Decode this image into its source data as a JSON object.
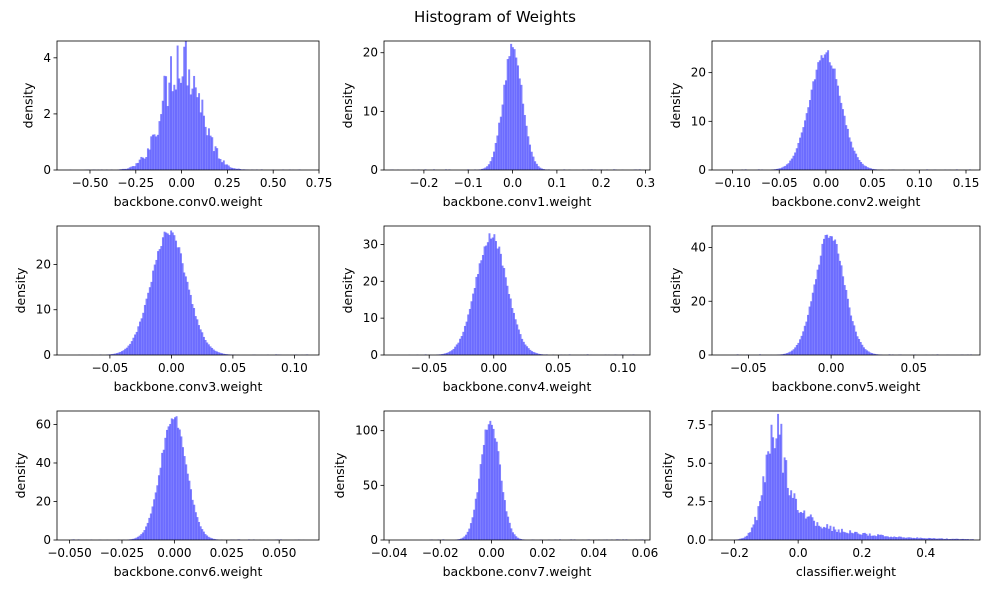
{
  "figure": {
    "title": "Histogram of Weights",
    "bar_color": "#0000ff",
    "bar_opacity": 0.5
  },
  "chart_data": [
    {
      "type": "histogram",
      "name": "conv0",
      "xlabel": "backbone.conv0.weight",
      "ylabel": "density",
      "xlim": [
        -0.68,
        0.75
      ],
      "ylim": [
        0,
        4.6
      ],
      "xticks": [
        -0.5,
        -0.25,
        0.0,
        0.25,
        0.5,
        0.75
      ],
      "xticklabels": [
        "−0.50",
        "−0.25",
        "0.00",
        "0.25",
        "0.50",
        "0.75"
      ],
      "yticks": [
        0,
        2,
        4
      ],
      "yticklabels": [
        "0",
        "2",
        "4"
      ],
      "dist": {
        "mean": 0.0,
        "sd": 0.1,
        "peak": 4.1,
        "range": [
          -0.63,
          0.72
        ],
        "skew": 0,
        "noise": 0.3
      }
    },
    {
      "type": "histogram",
      "name": "conv1",
      "xlabel": "backbone.conv1.weight",
      "ylabel": "density",
      "xlim": [
        -0.29,
        0.31
      ],
      "ylim": [
        0,
        22
      ],
      "xticks": [
        -0.2,
        -0.1,
        0.0,
        0.1,
        0.2,
        0.3
      ],
      "xticklabels": [
        "−0.2",
        "−0.1",
        "0.0",
        "0.1",
        "0.2",
        "0.3"
      ],
      "yticks": [
        0,
        10,
        20
      ],
      "yticklabels": [
        "0",
        "10",
        "20"
      ],
      "dist": {
        "mean": 0.0,
        "sd": 0.022,
        "peak": 20.5,
        "range": [
          -0.28,
          0.3
        ],
        "skew": 0,
        "noise": 0.08
      }
    },
    {
      "type": "histogram",
      "name": "conv2",
      "xlabel": "backbone.conv2.weight",
      "ylabel": "density",
      "xlim": [
        -0.122,
        0.165
      ],
      "ylim": [
        0,
        26.5
      ],
      "xticks": [
        -0.1,
        -0.05,
        0.0,
        0.05,
        0.1,
        0.15
      ],
      "xticklabels": [
        "−0.10",
        "−0.05",
        "0.00",
        "0.05",
        "0.10",
        "0.15"
      ],
      "yticks": [
        0,
        10,
        20
      ],
      "yticklabels": [
        "0",
        "10",
        "20"
      ],
      "dist": {
        "mean": -0.001,
        "sd": 0.0165,
        "peak": 24,
        "range": [
          -0.11,
          0.155
        ],
        "skew": 0,
        "noise": 0.05
      }
    },
    {
      "type": "histogram",
      "name": "conv3",
      "xlabel": "backbone.conv3.weight",
      "ylabel": "density",
      "xlim": [
        -0.093,
        0.12
      ],
      "ylim": [
        0,
        28.5
      ],
      "xticks": [
        -0.05,
        0.0,
        0.05,
        0.1
      ],
      "xticklabels": [
        "−0.05",
        "0.00",
        "0.05",
        "0.10"
      ],
      "yticks": [
        0,
        10,
        20
      ],
      "yticklabels": [
        "0",
        "10",
        "20"
      ],
      "dist": {
        "mean": -0.002,
        "sd": 0.0145,
        "peak": 27,
        "range": [
          -0.085,
          0.115
        ],
        "skew": 0,
        "noise": 0.04
      }
    },
    {
      "type": "histogram",
      "name": "conv4",
      "xlabel": "backbone.conv4.weight",
      "ylabel": "density",
      "xlim": [
        -0.085,
        0.121
      ],
      "ylim": [
        0,
        35
      ],
      "xticks": [
        -0.05,
        0.0,
        0.05,
        0.1
      ],
      "xticklabels": [
        "−0.05",
        "0.00",
        "0.05",
        "0.10"
      ],
      "yticks": [
        0,
        10,
        20,
        30
      ],
      "yticklabels": [
        "0",
        "10",
        "20",
        "30"
      ],
      "dist": {
        "mean": -0.002,
        "sd": 0.012,
        "peak": 32.5,
        "range": [
          -0.075,
          0.115
        ],
        "skew": 0,
        "noise": 0.04
      }
    },
    {
      "type": "histogram",
      "name": "conv5",
      "xlabel": "backbone.conv5.weight",
      "ylabel": "density",
      "xlim": [
        -0.072,
        0.09
      ],
      "ylim": [
        0,
        48
      ],
      "xticks": [
        -0.05,
        0.0,
        0.05
      ],
      "xticklabels": [
        "−0.05",
        "0.00",
        "0.05"
      ],
      "yticks": [
        0,
        20,
        40
      ],
      "yticklabels": [
        "0",
        "20",
        "40"
      ],
      "dist": {
        "mean": -0.001,
        "sd": 0.0088,
        "peak": 45,
        "range": [
          -0.06,
          0.085
        ],
        "skew": 0,
        "noise": 0.04
      }
    },
    {
      "type": "histogram",
      "name": "conv6",
      "xlabel": "backbone.conv6.weight",
      "ylabel": "density",
      "xlim": [
        -0.056,
        0.069
      ],
      "ylim": [
        0,
        67
      ],
      "xticks": [
        -0.05,
        -0.025,
        0.0,
        0.025,
        0.05
      ],
      "xticklabels": [
        "−0.050",
        "−0.025",
        "0.000",
        "0.025",
        "0.050"
      ],
      "yticks": [
        0,
        20,
        40,
        60
      ],
      "yticklabels": [
        "0",
        "20",
        "40",
        "60"
      ],
      "dist": {
        "mean": -0.0005,
        "sd": 0.0062,
        "peak": 63.5,
        "range": [
          -0.05,
          0.065
        ],
        "skew": 0,
        "noise": 0.04
      }
    },
    {
      "type": "histogram",
      "name": "conv7",
      "xlabel": "backbone.conv7.weight",
      "ylabel": "density",
      "xlim": [
        -0.042,
        0.062
      ],
      "ylim": [
        0,
        118
      ],
      "xticks": [
        -0.04,
        -0.02,
        0.0,
        0.02,
        0.04,
        0.06
      ],
      "xticklabels": [
        "−0.04",
        "−0.02",
        "0.00",
        "0.02",
        "0.04",
        "0.06"
      ],
      "yticks": [
        0,
        50,
        100
      ],
      "yticklabels": [
        "0",
        "50",
        "100"
      ],
      "dist": {
        "mean": -0.0005,
        "sd": 0.0038,
        "peak": 110,
        "range": [
          -0.035,
          0.06
        ],
        "skew": 0,
        "noise": 0.05
      }
    },
    {
      "type": "histogram",
      "name": "classifier",
      "xlabel": "classifier.weight",
      "ylabel": "density",
      "xlim": [
        -0.27,
        0.57
      ],
      "ylim": [
        0,
        8.4
      ],
      "xticks": [
        -0.2,
        0.0,
        0.2,
        0.4
      ],
      "xticklabels": [
        "−0.2",
        "0.0",
        "0.2",
        "0.4"
      ],
      "yticks": [
        0.0,
        2.5,
        5.0,
        7.5
      ],
      "yticklabels": [
        "0.0",
        "2.5",
        "5.0",
        "7.5"
      ],
      "dist": {
        "mean": -0.06,
        "sd": 0.04,
        "peak": 7.4,
        "range": [
          -0.22,
          0.55
        ],
        "skew": 1,
        "noise": 0.25
      }
    }
  ]
}
